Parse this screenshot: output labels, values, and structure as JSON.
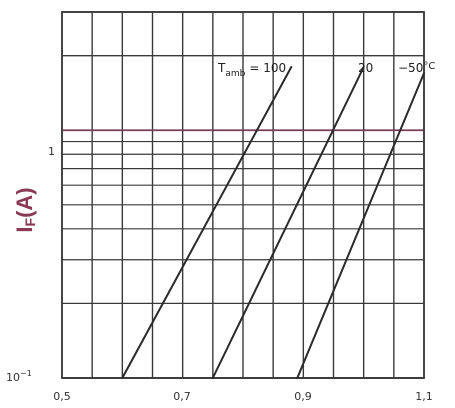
{
  "chart_data": {
    "type": "line",
    "x_scale": "linear",
    "y_scale": "log",
    "xlim": [
      0.5,
      1.1
    ],
    "ylim": [
      0.1,
      3
    ],
    "grid": true,
    "x_ticks": [
      0.5,
      0.6,
      0.7,
      0.8,
      0.9,
      1.0,
      1.1
    ],
    "x_tick_labels": [
      "0,5",
      "",
      "0,7",
      "",
      "0,9",
      "",
      "1,1"
    ],
    "y_tick_labels": [
      {
        "value": 0.1,
        "label": "10",
        "sup": "−1"
      },
      {
        "value": 1,
        "label": "1",
        "sup": ""
      }
    ],
    "ylabel": {
      "main": "I",
      "sub": "F",
      "unit": "(A)"
    },
    "annotation": {
      "prefix": "T",
      "prefix_sub": "amb",
      "eq_value": "= 100",
      "mid_value": "20",
      "last_value": "−50",
      "unit": "°C"
    },
    "series": [
      {
        "label_ref": "eq_value",
        "x": [
          0.6,
          0.88
        ],
        "y": [
          0.1,
          1.8
        ]
      },
      {
        "label_ref": "mid_value",
        "x": [
          0.75,
          1.0
        ],
        "y": [
          0.1,
          1.8
        ]
      },
      {
        "label_ref": "last_value",
        "x": [
          0.89,
          1.1
        ],
        "y": [
          0.1,
          1.7
        ]
      }
    ],
    "colors": {
      "grid": "#3a3a3a",
      "grid_accent": "#7a3a5a",
      "line": "#2a2a2a",
      "ylabel": "#8a3a55"
    }
  }
}
